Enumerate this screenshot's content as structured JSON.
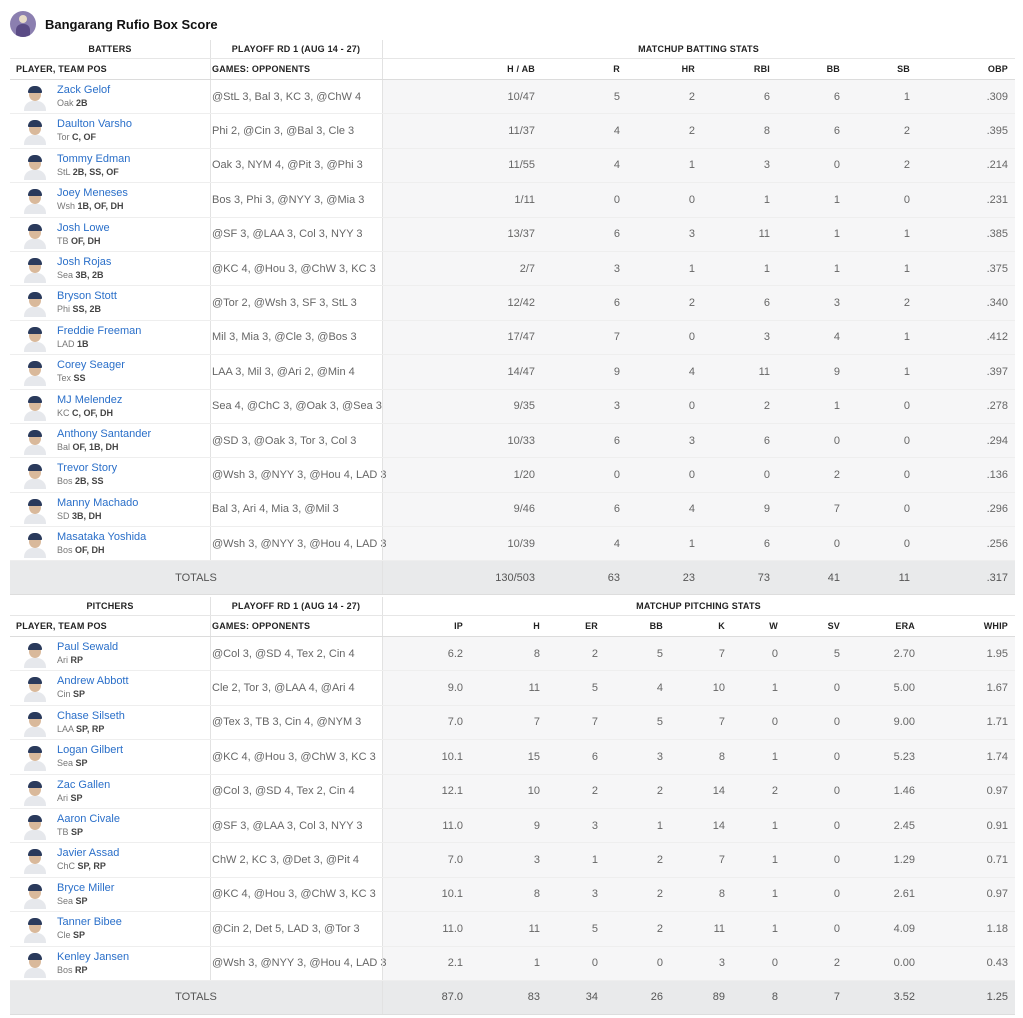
{
  "header": {
    "title": "Bangarang Rufio Box Score",
    "avatar_icon": "team-logo-icon"
  },
  "batting": {
    "group_headers": [
      "BATTERS",
      "PLAYOFF RD 1 (AUG 14 - 27)",
      "MATCHUP BATTING STATS"
    ],
    "col_headers": [
      "PLAYER, TEAM POS",
      "GAMES: OPPONENTS",
      "H / AB",
      "R",
      "HR",
      "RBI",
      "BB",
      "SB",
      "OBP"
    ],
    "rows": [
      {
        "name": "Zack Gelof",
        "team": "Oak",
        "pos": "2B",
        "opp": "@StL 3, Bal 3, KC 3, @ChW 4",
        "stats": [
          "10/47",
          "5",
          "2",
          "6",
          "6",
          "1",
          ".309"
        ]
      },
      {
        "name": "Daulton Varsho",
        "team": "Tor",
        "pos": "C, OF",
        "opp": "Phi 2, @Cin 3, @Bal 3, Cle 3",
        "stats": [
          "11/37",
          "4",
          "2",
          "8",
          "6",
          "2",
          ".395"
        ]
      },
      {
        "name": "Tommy Edman",
        "team": "StL",
        "pos": "2B, SS, OF",
        "opp": "Oak 3, NYM 4, @Pit 3, @Phi 3",
        "stats": [
          "11/55",
          "4",
          "1",
          "3",
          "0",
          "2",
          ".214"
        ]
      },
      {
        "name": "Joey Meneses",
        "team": "Wsh",
        "pos": "1B, OF, DH",
        "opp": "Bos 3, Phi 3, @NYY 3, @Mia 3",
        "stats": [
          "1/11",
          "0",
          "0",
          "1",
          "1",
          "0",
          ".231"
        ]
      },
      {
        "name": "Josh Lowe",
        "team": "TB",
        "pos": "OF, DH",
        "opp": "@SF 3, @LAA 3, Col 3, NYY 3",
        "stats": [
          "13/37",
          "6",
          "3",
          "11",
          "1",
          "1",
          ".385"
        ]
      },
      {
        "name": "Josh Rojas",
        "team": "Sea",
        "pos": "3B, 2B",
        "opp": "@KC 4, @Hou 3, @ChW 3, KC 3",
        "stats": [
          "2/7",
          "3",
          "1",
          "1",
          "1",
          "1",
          ".375"
        ]
      },
      {
        "name": "Bryson Stott",
        "team": "Phi",
        "pos": "SS, 2B",
        "opp": "@Tor 2, @Wsh 3, SF 3, StL 3",
        "stats": [
          "12/42",
          "6",
          "2",
          "6",
          "3",
          "2",
          ".340"
        ]
      },
      {
        "name": "Freddie Freeman",
        "team": "LAD",
        "pos": "1B",
        "opp": "Mil 3, Mia 3, @Cle 3, @Bos 3",
        "stats": [
          "17/47",
          "7",
          "0",
          "3",
          "4",
          "1",
          ".412"
        ]
      },
      {
        "name": "Corey Seager",
        "team": "Tex",
        "pos": "SS",
        "opp": "LAA 3, Mil 3, @Ari 2, @Min 4",
        "stats": [
          "14/47",
          "9",
          "4",
          "11",
          "9",
          "1",
          ".397"
        ]
      },
      {
        "name": "MJ Melendez",
        "team": "KC",
        "pos": "C, OF, DH",
        "opp": "Sea 4, @ChC 3, @Oak 3, @Sea 3",
        "stats": [
          "9/35",
          "3",
          "0",
          "2",
          "1",
          "0",
          ".278"
        ]
      },
      {
        "name": "Anthony Santander",
        "team": "Bal",
        "pos": "OF, 1B, DH",
        "opp": "@SD 3, @Oak 3, Tor 3, Col 3",
        "stats": [
          "10/33",
          "6",
          "3",
          "6",
          "0",
          "0",
          ".294"
        ]
      },
      {
        "name": "Trevor Story",
        "team": "Bos",
        "pos": "2B, SS",
        "opp": "@Wsh 3, @NYY 3, @Hou 4, LAD 3",
        "stats": [
          "1/20",
          "0",
          "0",
          "0",
          "2",
          "0",
          ".136"
        ]
      },
      {
        "name": "Manny Machado",
        "team": "SD",
        "pos": "3B, DH",
        "opp": "Bal 3, Ari 4, Mia 3, @Mil 3",
        "stats": [
          "9/46",
          "6",
          "4",
          "9",
          "7",
          "0",
          ".296"
        ]
      },
      {
        "name": "Masataka Yoshida",
        "team": "Bos",
        "pos": "OF, DH",
        "opp": "@Wsh 3, @NYY 3, @Hou 4, LAD 3",
        "stats": [
          "10/39",
          "4",
          "1",
          "6",
          "0",
          "0",
          ".256"
        ]
      }
    ],
    "totals_label": "TOTALS",
    "totals": [
      "130/503",
      "63",
      "23",
      "73",
      "41",
      "11",
      ".317"
    ]
  },
  "pitching": {
    "group_headers": [
      "PITCHERS",
      "PLAYOFF RD 1 (AUG 14 - 27)",
      "MATCHUP PITCHING STATS"
    ],
    "col_headers": [
      "PLAYER, TEAM POS",
      "GAMES: OPPONENTS",
      "IP",
      "H",
      "ER",
      "BB",
      "K",
      "W",
      "SV",
      "ERA",
      "WHIP"
    ],
    "rows": [
      {
        "name": "Paul Sewald",
        "team": "Ari",
        "pos": "RP",
        "opp": "@Col 3, @SD 4, Tex 2, Cin 4",
        "stats": [
          "6.2",
          "8",
          "2",
          "5",
          "7",
          "0",
          "5",
          "2.70",
          "1.95"
        ]
      },
      {
        "name": "Andrew Abbott",
        "team": "Cin",
        "pos": "SP",
        "opp": "Cle 2, Tor 3, @LAA 4, @Ari 4",
        "stats": [
          "9.0",
          "11",
          "5",
          "4",
          "10",
          "1",
          "0",
          "5.00",
          "1.67"
        ]
      },
      {
        "name": "Chase Silseth",
        "team": "LAA",
        "pos": "SP, RP",
        "opp": "@Tex 3, TB 3, Cin 4, @NYM 3",
        "stats": [
          "7.0",
          "7",
          "7",
          "5",
          "7",
          "0",
          "0",
          "9.00",
          "1.71"
        ]
      },
      {
        "name": "Logan Gilbert",
        "team": "Sea",
        "pos": "SP",
        "opp": "@KC 4, @Hou 3, @ChW 3, KC 3",
        "stats": [
          "10.1",
          "15",
          "6",
          "3",
          "8",
          "1",
          "0",
          "5.23",
          "1.74"
        ]
      },
      {
        "name": "Zac Gallen",
        "team": "Ari",
        "pos": "SP",
        "opp": "@Col 3, @SD 4, Tex 2, Cin 4",
        "stats": [
          "12.1",
          "10",
          "2",
          "2",
          "14",
          "2",
          "0",
          "1.46",
          "0.97"
        ]
      },
      {
        "name": "Aaron Civale",
        "team": "TB",
        "pos": "SP",
        "opp": "@SF 3, @LAA 3, Col 3, NYY 3",
        "stats": [
          "11.0",
          "9",
          "3",
          "1",
          "14",
          "1",
          "0",
          "2.45",
          "0.91"
        ]
      },
      {
        "name": "Javier Assad",
        "team": "ChC",
        "pos": "SP, RP",
        "opp": "ChW 2, KC 3, @Det 3, @Pit 4",
        "stats": [
          "7.0",
          "3",
          "1",
          "2",
          "7",
          "1",
          "0",
          "1.29",
          "0.71"
        ]
      },
      {
        "name": "Bryce Miller",
        "team": "Sea",
        "pos": "SP",
        "opp": "@KC 4, @Hou 3, @ChW 3, KC 3",
        "stats": [
          "10.1",
          "8",
          "3",
          "2",
          "8",
          "1",
          "0",
          "2.61",
          "0.97"
        ]
      },
      {
        "name": "Tanner Bibee",
        "team": "Cle",
        "pos": "SP",
        "opp": "@Cin 2, Det 5, LAD 3, @Tor 3",
        "stats": [
          "11.0",
          "11",
          "5",
          "2",
          "11",
          "1",
          "0",
          "4.09",
          "1.18"
        ]
      },
      {
        "name": "Kenley Jansen",
        "team": "Bos",
        "pos": "RP",
        "opp": "@Wsh 3, @NYY 3, @Hou 4, LAD 3",
        "stats": [
          "2.1",
          "1",
          "0",
          "0",
          "3",
          "0",
          "2",
          "0.00",
          "0.43"
        ]
      }
    ],
    "totals_label": "TOTALS",
    "totals": [
      "87.0",
      "83",
      "34",
      "26",
      "89",
      "8",
      "7",
      "3.52",
      "1.25"
    ]
  }
}
